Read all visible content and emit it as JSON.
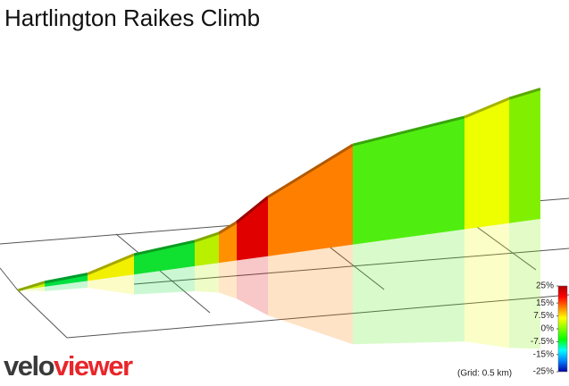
{
  "chart_data": {
    "type": "climb-profile",
    "title": "Hartlington Raikes Climb",
    "segments": [
      {
        "gradient": 6,
        "color": "#c8f000"
      },
      {
        "gradient": 2,
        "color": "#00e040"
      },
      {
        "gradient": 10,
        "color": "#f0f000"
      },
      {
        "gradient": 3,
        "color": "#10e030"
      },
      {
        "gradient": 7,
        "color": "#b8f000"
      },
      {
        "gradient": 17,
        "color": "#ff9000"
      },
      {
        "gradient": 24,
        "color": "#e00000"
      },
      {
        "gradient": 17,
        "color": "#ff8000"
      },
      {
        "gradient": 4,
        "color": "#50ee10"
      },
      {
        "gradient": 10,
        "color": "#eeff00"
      },
      {
        "gradient": 6,
        "color": "#80f000"
      }
    ],
    "colorbar": {
      "lim": [
        -25,
        25
      ],
      "ticks": [
        {
          "value": 25,
          "label": "25%"
        },
        {
          "value": 15,
          "label": "15%"
        },
        {
          "value": 7.5,
          "label": "7.5%"
        },
        {
          "value": 0,
          "label": "0%"
        },
        {
          "value": -7.5,
          "label": "-7.5%"
        },
        {
          "value": -15,
          "label": "-15%"
        },
        {
          "value": -25,
          "label": "-25%"
        }
      ],
      "colors": [
        "#b00000",
        "#ff0000",
        "#ff8000",
        "#ffff00",
        "#80ff00",
        "#00ff00",
        "#00ffff",
        "#0080ff",
        "#0000a0"
      ]
    },
    "grid_note": "(Grid: 0.5 km)"
  },
  "logo": {
    "prefix": "velo",
    "suffix": "viewer"
  }
}
